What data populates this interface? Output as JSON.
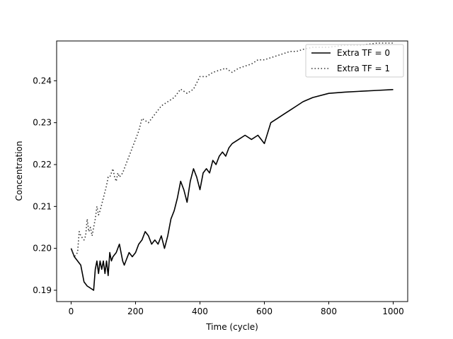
{
  "chart_data": {
    "type": "line",
    "title": "",
    "xlabel": "Time (cycle)",
    "ylabel": "Concentration",
    "xlim": [
      -45,
      1045
    ],
    "ylim": [
      0.1873,
      0.2495
    ],
    "xticks": [
      0,
      200,
      400,
      600,
      800,
      1000
    ],
    "xtick_labels": [
      "0",
      "200",
      "400",
      "600",
      "800",
      "1000"
    ],
    "yticks": [
      0.19,
      0.2,
      0.21,
      0.22,
      0.23,
      0.24
    ],
    "ytick_labels": [
      "0.19",
      "0.20",
      "0.21",
      "0.22",
      "0.23",
      "0.24"
    ],
    "grid": false,
    "legend_position": "top-right",
    "series": [
      {
        "name": "Extra TF = 0",
        "color": "#000000",
        "style": "solid",
        "x": [
          0,
          10,
          20,
          30,
          40,
          50,
          60,
          70,
          75,
          80,
          85,
          90,
          95,
          100,
          105,
          110,
          115,
          120,
          125,
          130,
          140,
          150,
          155,
          160,
          165,
          170,
          180,
          190,
          200,
          210,
          220,
          230,
          240,
          250,
          260,
          270,
          280,
          290,
          300,
          310,
          320,
          330,
          340,
          350,
          360,
          370,
          380,
          390,
          400,
          410,
          420,
          430,
          440,
          450,
          460,
          470,
          480,
          490,
          500,
          520,
          540,
          560,
          580,
          600,
          620,
          640,
          660,
          680,
          700,
          720,
          750,
          800,
          850,
          900,
          950,
          1000
        ],
        "y": [
          0.2,
          0.198,
          0.197,
          0.196,
          0.192,
          0.191,
          0.1905,
          0.19,
          0.195,
          0.197,
          0.194,
          0.197,
          0.195,
          0.197,
          0.194,
          0.197,
          0.1935,
          0.199,
          0.197,
          0.198,
          0.199,
          0.201,
          0.199,
          0.197,
          0.196,
          0.197,
          0.199,
          0.198,
          0.199,
          0.201,
          0.202,
          0.204,
          0.203,
          0.201,
          0.202,
          0.201,
          0.203,
          0.2,
          0.203,
          0.207,
          0.209,
          0.212,
          0.216,
          0.214,
          0.211,
          0.216,
          0.219,
          0.217,
          0.214,
          0.218,
          0.219,
          0.218,
          0.221,
          0.22,
          0.222,
          0.223,
          0.222,
          0.224,
          0.225,
          0.226,
          0.227,
          0.226,
          0.227,
          0.225,
          0.23,
          0.231,
          0.232,
          0.233,
          0.234,
          0.235,
          0.236,
          0.237,
          0.2373,
          0.2375,
          0.2377,
          0.2379
        ]
      },
      {
        "name": "Extra TF = 1",
        "color": "#333333",
        "style": "dotted",
        "x": [
          0,
          10,
          20,
          25,
          30,
          40,
          45,
          50,
          55,
          60,
          65,
          70,
          75,
          80,
          85,
          90,
          100,
          110,
          115,
          120,
          130,
          135,
          140,
          145,
          150,
          160,
          170,
          180,
          190,
          200,
          210,
          220,
          240,
          260,
          280,
          300,
          320,
          340,
          360,
          380,
          400,
          420,
          440,
          460,
          480,
          500,
          520,
          540,
          560,
          580,
          600,
          620,
          640,
          660,
          680,
          700,
          720,
          750,
          800,
          850,
          900,
          950,
          1000
        ],
        "y": [
          0.2,
          0.198,
          0.199,
          0.204,
          0.203,
          0.202,
          0.203,
          0.207,
          0.204,
          0.205,
          0.203,
          0.205,
          0.207,
          0.21,
          0.208,
          0.209,
          0.212,
          0.215,
          0.217,
          0.217,
          0.219,
          0.217,
          0.216,
          0.218,
          0.217,
          0.218,
          0.22,
          0.222,
          0.224,
          0.226,
          0.228,
          0.231,
          0.23,
          0.232,
          0.234,
          0.235,
          0.236,
          0.238,
          0.237,
          0.238,
          0.241,
          0.241,
          0.242,
          0.2425,
          0.243,
          0.242,
          0.243,
          0.2435,
          0.244,
          0.245,
          0.245,
          0.2455,
          0.246,
          0.2465,
          0.247,
          0.247,
          0.2475,
          0.248,
          0.248,
          0.2485,
          0.2485,
          0.249,
          0.249
        ]
      }
    ]
  }
}
